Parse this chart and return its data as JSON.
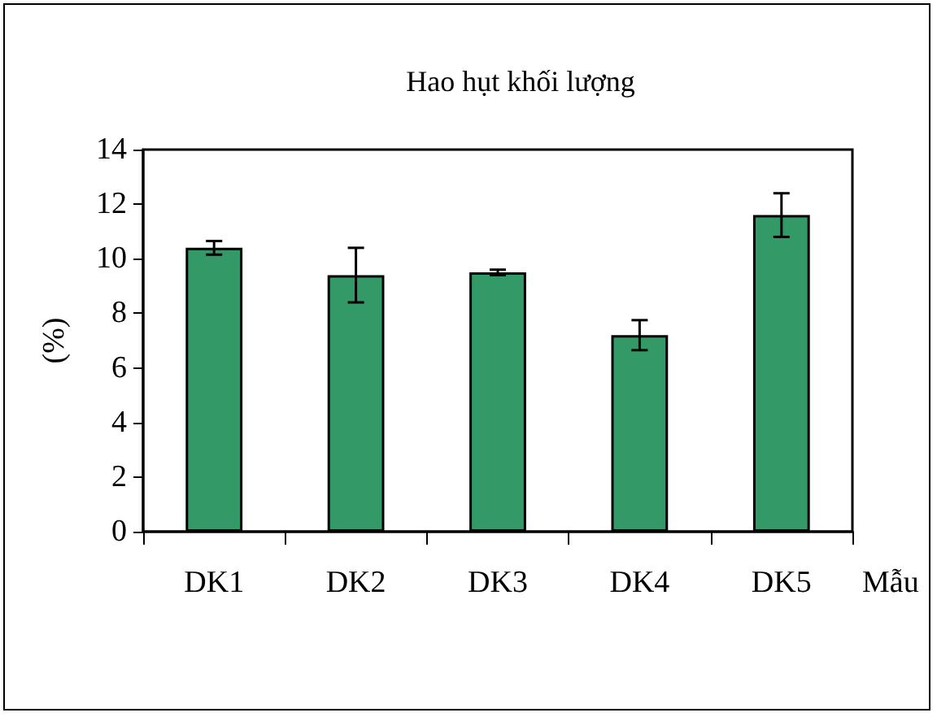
{
  "chart_data": {
    "type": "bar",
    "title": "Hao hụt khối lượng",
    "xlabel": "Mẫu",
    "ylabel": "(%)",
    "categories": [
      "DK1",
      "DK2",
      "DK3",
      "DK4",
      "DK5"
    ],
    "series": [
      {
        "color": "#339966",
        "values": [
          10.4,
          9.4,
          9.5,
          7.2,
          11.6
        ],
        "errors": [
          0.25,
          1.0,
          0.1,
          0.55,
          0.8
        ]
      }
    ],
    "ylim": [
      0,
      14
    ],
    "yticks": [
      0,
      2,
      4,
      6,
      8,
      10,
      12,
      14
    ],
    "grid": false
  }
}
